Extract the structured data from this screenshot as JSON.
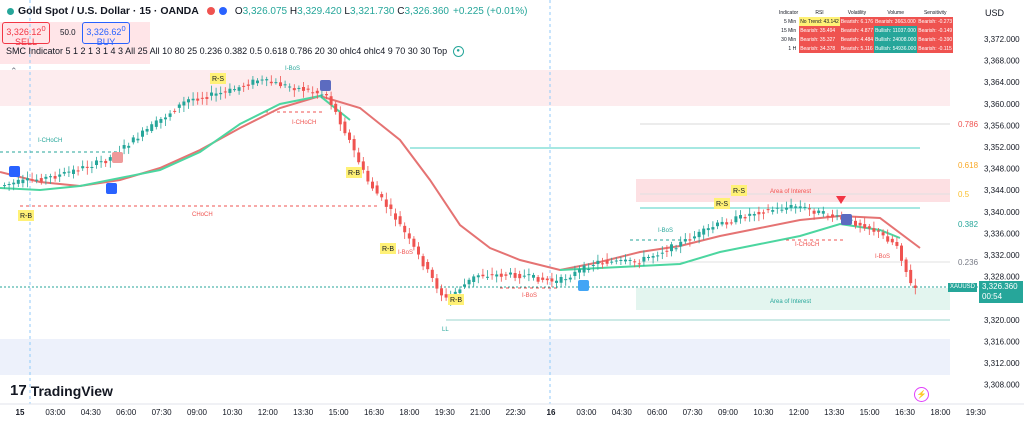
{
  "header": {
    "symbol_title": "Gold Spot / U.S. Dollar · 15 · OANDA",
    "open_label": "O",
    "open": "3,326.075",
    "high_label": "H",
    "high": "3,329.420",
    "low_label": "L",
    "low": "3,321.730",
    "close_label": "C",
    "close": "3,326.360",
    "change": "+0.225 (+0.01%)"
  },
  "trade": {
    "sell_price": "3,326.12",
    "sell_sup": "0",
    "sell_label": "SELL",
    "spread": "50.0",
    "buy_price": "3,326.62",
    "buy_sup": "0",
    "buy_label": "BUY"
  },
  "indicator_line": "SMC Indicator 5 1 2 1 3 1 4 3 All 25 All 10 80 25 0.236 0.382 0.5 0.618 0.786 20 30 ohlc4 ohlc4 9 70 30 30 Top",
  "collapse_glyph": "⌃",
  "price_axis": {
    "currency": "USD",
    "ticks": [
      "3,372.000",
      "3,368.000",
      "3,364.000",
      "3,360.000",
      "3,356.000",
      "3,352.000",
      "3,348.000",
      "3,344.000",
      "3,340.000",
      "3,336.000",
      "3,332.000",
      "3,328.000",
      "3,324.000",
      "3,320.000",
      "3,316.000",
      "3,312.000",
      "3,308.000"
    ],
    "current_symbol": "XAUUSD",
    "current_price": "3,326.360",
    "countdown": "00:54"
  },
  "time_axis": {
    "labels": [
      "15",
      "03:00",
      "04:30",
      "06:00",
      "07:30",
      "09:00",
      "10:30",
      "12:00",
      "13:30",
      "15:00",
      "16:30",
      "18:00",
      "19:30",
      "21:00",
      "22:30",
      "16",
      "03:00",
      "04:30",
      "06:00",
      "07:30",
      "09:00",
      "10:30",
      "12:00",
      "13:30",
      "15:00",
      "16:30",
      "18:00",
      "19:30"
    ]
  },
  "fib_labels": [
    "0.786",
    "0.618",
    "0.5",
    "0.382",
    "0.236"
  ],
  "zone_labels": {
    "top": "Area of Interest",
    "bottom": "Area of Interest"
  },
  "structure_labels": {
    "choch": "CHoCH",
    "i_choch": "I-CHoCH",
    "i_bos": "I-BoS",
    "bos": "BoS",
    "ll": "LL",
    "rs": "R-S",
    "rb": "R-B"
  },
  "perf_table": {
    "headers": [
      "Indicator",
      "RSI",
      "Volatility",
      "Volume",
      "Sensitivity"
    ],
    "rows": [
      {
        "tf": "5 Min",
        "cells": [
          "No Trend: 43.142",
          "Bearish: 6.176",
          "Bearish: 3663.000",
          "Bearish: -0.273"
        ],
        "colors": [
          "y",
          "r",
          "r",
          "r"
        ]
      },
      {
        "tf": "15 Min",
        "cells": [
          "Bearish: 35.494",
          "Bearish: 4.877",
          "Bullish: 11037.000",
          "Bearish: -0.149"
        ],
        "colors": [
          "r",
          "r",
          "g",
          "r"
        ]
      },
      {
        "tf": "30 Min",
        "cells": [
          "Bearish: 35.327",
          "Bearish: 4.484",
          "Bullish: 24008.000",
          "Bearish: -0.390"
        ],
        "colors": [
          "r",
          "r",
          "g",
          "r"
        ]
      },
      {
        "tf": "1 H",
        "cells": [
          "Bearish: 34.378",
          "Bearish: 5.116",
          "Bullish: 54936.000",
          "Bearish: -0.115"
        ],
        "colors": [
          "r",
          "r",
          "g",
          "r"
        ]
      }
    ]
  },
  "colors": {
    "bull": "#26a69a",
    "bear": "#ef5350",
    "ema_fast": "#4cd6a0",
    "ema_slow": "#e57373",
    "accent": "#2962ff"
  },
  "brand": "TradingView",
  "brand_mark": "17"
}
